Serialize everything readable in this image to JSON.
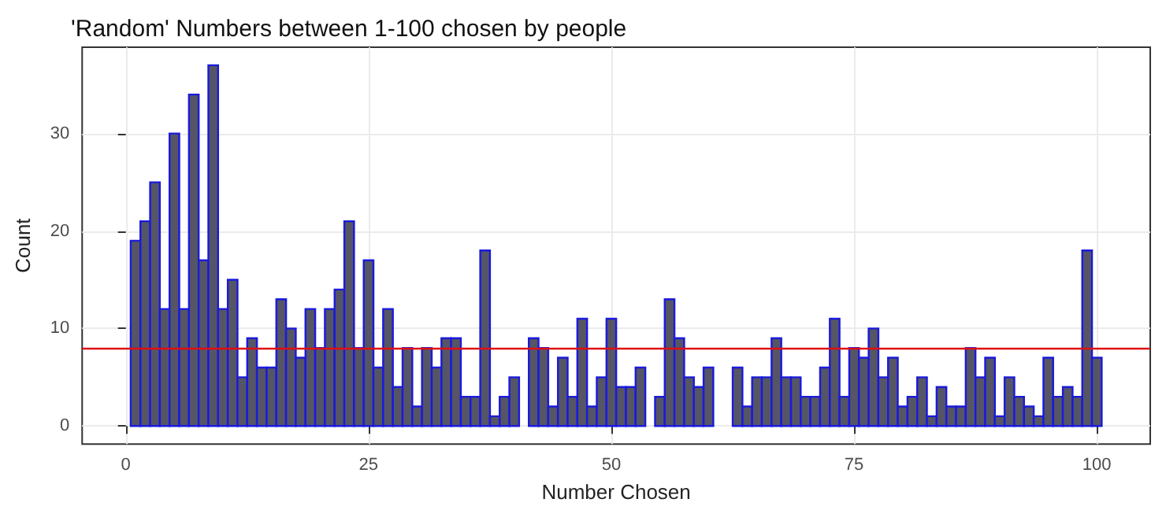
{
  "chart_data": {
    "type": "histogram",
    "title": "'Random' Numbers between 1-100 chosen by people",
    "xlabel": "Number Chosen",
    "ylabel": "Count",
    "bins": [
      0.5,
      1.5,
      2.5,
      3.5,
      4.5,
      5.5,
      6.5,
      7.5,
      8.5,
      9.5,
      10.5,
      11.5,
      12.5,
      13.5,
      14.5,
      15.5,
      16.5,
      17.5,
      18.5,
      19.5,
      20.5,
      21.5,
      22.5,
      23.5,
      24.5,
      25.5,
      26.5,
      27.5,
      28.5,
      29.5,
      30.5,
      31.5,
      32.5,
      33.5,
      34.5,
      35.5,
      36.5,
      37.5,
      38.5,
      39.5,
      40.5,
      41.5,
      42.5,
      43.5,
      44.5,
      45.5,
      46.5,
      47.5,
      48.5,
      49.5,
      50.5,
      51.5,
      52.5,
      53.5,
      54.5,
      55.5,
      56.5,
      57.5,
      58.5,
      59.5,
      60.5,
      61.5,
      62.5,
      63.5,
      64.5,
      65.5,
      66.5,
      67.5,
      68.5,
      69.5,
      70.5,
      71.5,
      72.5,
      73.5,
      74.5,
      75.5,
      76.5,
      77.5,
      78.5,
      79.5,
      80.5,
      81.5,
      82.5,
      83.5,
      84.5,
      85.5,
      86.5,
      87.5,
      88.5,
      89.5,
      90.5,
      91.5,
      92.5,
      93.5,
      94.5,
      95.5,
      96.5,
      97.5,
      98.5,
      99.5,
      100.5
    ],
    "values": [
      19,
      21,
      25,
      12,
      30,
      12,
      34,
      17,
      37,
      12,
      15,
      5,
      9,
      6,
      6,
      13,
      10,
      7,
      12,
      8,
      12,
      14,
      21,
      8,
      17,
      6,
      12,
      4,
      8,
      2,
      8,
      6,
      9,
      9,
      3,
      3,
      18,
      1,
      3,
      5,
      0,
      9,
      8,
      2,
      7,
      3,
      11,
      2,
      5,
      11,
      4,
      4,
      6,
      0,
      3,
      13,
      9,
      5,
      4,
      6,
      0,
      0,
      6,
      2,
      5,
      5,
      9,
      5,
      5,
      3,
      3,
      6,
      11,
      3,
      8,
      7,
      10,
      5,
      7,
      2,
      3,
      5,
      1,
      4,
      2,
      2,
      8,
      5,
      7,
      1,
      5,
      3,
      2,
      1,
      7,
      3,
      4,
      3,
      18,
      7
    ],
    "color": "#555566",
    "xlim": [
      -4.5,
      105.5
    ],
    "xticks": [
      0,
      25,
      50,
      75,
      100
    ],
    "ylim": [
      -1.85,
      38.85
    ],
    "yticks": [
      0,
      10,
      20,
      30
    ],
    "grid": true,
    "ref_lines": [
      {
        "axis": "y",
        "value": 7.9,
        "color": "#dd1111"
      }
    ]
  }
}
